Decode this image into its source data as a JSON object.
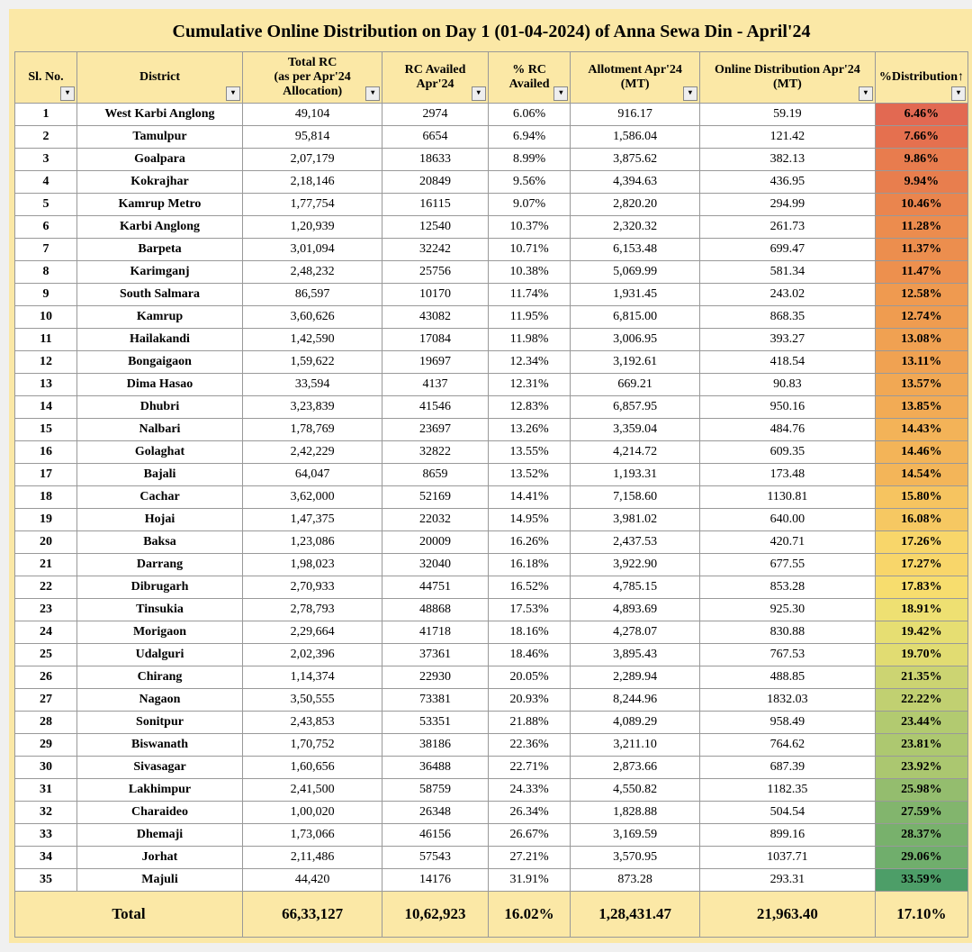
{
  "title": "Cumulative Online Distribution on Day 1 (01-04-2024) of Anna Sewa Din - April'24",
  "headers": [
    "Sl. No.",
    "District",
    "Total RC\n(as per Apr'24 Allocation)",
    "RC Availed Apr'24",
    "% RC Availed",
    "Allotment Apr'24 (MT)",
    "Online Distribution Apr'24 (MT)",
    "%Distribution↑"
  ],
  "rows": [
    {
      "sl": "1",
      "district": "West Karbi Anglong",
      "totalrc": "49,104",
      "rcavailed": "2974",
      "pctrc": "6.06%",
      "allot": "916.17",
      "dist": "59.19",
      "pctdist": "6.46%",
      "color": "#e26952"
    },
    {
      "sl": "2",
      "district": "Tamulpur",
      "totalrc": "95,814",
      "rcavailed": "6654",
      "pctrc": "6.94%",
      "allot": "1,586.04",
      "dist": "121.42",
      "pctdist": "7.66%",
      "color": "#e5704f"
    },
    {
      "sl": "3",
      "district": "Goalpara",
      "totalrc": "2,07,179",
      "rcavailed": "18633",
      "pctrc": "8.99%",
      "allot": "3,875.62",
      "dist": "382.13",
      "pctdist": "9.86%",
      "color": "#e87c4e"
    },
    {
      "sl": "4",
      "district": "Kokrajhar",
      "totalrc": "2,18,146",
      "rcavailed": "20849",
      "pctrc": "9.56%",
      "allot": "4,394.63",
      "dist": "436.95",
      "pctdist": "9.94%",
      "color": "#e87e4e"
    },
    {
      "sl": "5",
      "district": "Kamrup Metro",
      "totalrc": "1,77,754",
      "rcavailed": "16115",
      "pctrc": "9.07%",
      "allot": "2,820.20",
      "dist": "294.99",
      "pctdist": "10.46%",
      "color": "#ea854e"
    },
    {
      "sl": "6",
      "district": "Karbi Anglong",
      "totalrc": "1,20,939",
      "rcavailed": "12540",
      "pctrc": "10.37%",
      "allot": "2,320.32",
      "dist": "261.73",
      "pctdist": "11.28%",
      "color": "#ec8c4e"
    },
    {
      "sl": "7",
      "district": "Barpeta",
      "totalrc": "3,01,094",
      "rcavailed": "32242",
      "pctrc": "10.71%",
      "allot": "6,153.48",
      "dist": "699.47",
      "pctdist": "11.37%",
      "color": "#ec8e4e"
    },
    {
      "sl": "8",
      "district": "Karimganj",
      "totalrc": "2,48,232",
      "rcavailed": "25756",
      "pctrc": "10.38%",
      "allot": "5,069.99",
      "dist": "581.34",
      "pctdist": "11.47%",
      "color": "#ed904e"
    },
    {
      "sl": "9",
      "district": "South Salmara",
      "totalrc": "86,597",
      "rcavailed": "10170",
      "pctrc": "11.74%",
      "allot": "1,931.45",
      "dist": "243.02",
      "pctdist": "12.58%",
      "color": "#ef9a50"
    },
    {
      "sl": "10",
      "district": "Kamrup",
      "totalrc": "3,60,626",
      "rcavailed": "43082",
      "pctrc": "11.95%",
      "allot": "6,815.00",
      "dist": "868.35",
      "pctdist": "12.74%",
      "color": "#ef9c50"
    },
    {
      "sl": "11",
      "district": "Hailakandi",
      "totalrc": "1,42,590",
      "rcavailed": "17084",
      "pctrc": "11.98%",
      "allot": "3,006.95",
      "dist": "393.27",
      "pctdist": "13.08%",
      "color": "#f0a152"
    },
    {
      "sl": "12",
      "district": "Bongaigaon",
      "totalrc": "1,59,622",
      "rcavailed": "19697",
      "pctrc": "12.34%",
      "allot": "3,192.61",
      "dist": "418.54",
      "pctdist": "13.11%",
      "color": "#f0a252"
    },
    {
      "sl": "13",
      "district": "Dima Hasao",
      "totalrc": "33,594",
      "rcavailed": "4137",
      "pctrc": "12.31%",
      "allot": "669.21",
      "dist": "90.83",
      "pctdist": "13.57%",
      "color": "#f1a854"
    },
    {
      "sl": "14",
      "district": "Dhubri",
      "totalrc": "3,23,839",
      "rcavailed": "41546",
      "pctrc": "12.83%",
      "allot": "6,857.95",
      "dist": "950.16",
      "pctdist": "13.85%",
      "color": "#f2ab55"
    },
    {
      "sl": "15",
      "district": "Nalbari",
      "totalrc": "1,78,769",
      "rcavailed": "23697",
      "pctrc": "13.26%",
      "allot": "3,359.04",
      "dist": "484.76",
      "pctdist": "14.43%",
      "color": "#f3b358"
    },
    {
      "sl": "16",
      "district": "Golaghat",
      "totalrc": "2,42,229",
      "rcavailed": "32822",
      "pctrc": "13.55%",
      "allot": "4,214.72",
      "dist": "609.35",
      "pctdist": "14.46%",
      "color": "#f3b458"
    },
    {
      "sl": "17",
      "district": "Bajali",
      "totalrc": "64,047",
      "rcavailed": "8659",
      "pctrc": "13.52%",
      "allot": "1,193.31",
      "dist": "173.48",
      "pctdist": "14.54%",
      "color": "#f3b559"
    },
    {
      "sl": "18",
      "district": "Cachar",
      "totalrc": "3,62,000",
      "rcavailed": "52169",
      "pctrc": "14.41%",
      "allot": "7,158.60",
      "dist": "1130.81",
      "pctdist": "15.80%",
      "color": "#f6c460"
    },
    {
      "sl": "19",
      "district": "Hojai",
      "totalrc": "1,47,375",
      "rcavailed": "22032",
      "pctrc": "14.95%",
      "allot": "3,981.02",
      "dist": "640.00",
      "pctdist": "16.08%",
      "color": "#f6c862"
    },
    {
      "sl": "20",
      "district": "Baksa",
      "totalrc": "1,23,086",
      "rcavailed": "20009",
      "pctrc": "16.26%",
      "allot": "2,437.53",
      "dist": "420.71",
      "pctdist": "17.26%",
      "color": "#f8d66a"
    },
    {
      "sl": "21",
      "district": "Darrang",
      "totalrc": "1,98,023",
      "rcavailed": "32040",
      "pctrc": "16.18%",
      "allot": "3,922.90",
      "dist": "677.55",
      "pctdist": "17.27%",
      "color": "#f8d66a"
    },
    {
      "sl": "22",
      "district": "Dibrugarh",
      "totalrc": "2,70,933",
      "rcavailed": "44751",
      "pctrc": "16.52%",
      "allot": "4,785.15",
      "dist": "853.28",
      "pctdist": "17.83%",
      "color": "#f7dd6e"
    },
    {
      "sl": "23",
      "district": "Tinsukia",
      "totalrc": "2,78,793",
      "rcavailed": "48868",
      "pctrc": "17.53%",
      "allot": "4,893.69",
      "dist": "925.30",
      "pctdist": "18.91%",
      "color": "#eee072"
    },
    {
      "sl": "24",
      "district": "Morigaon",
      "totalrc": "2,29,664",
      "rcavailed": "41718",
      "pctrc": "18.16%",
      "allot": "4,278.07",
      "dist": "830.88",
      "pctdist": "19.42%",
      "color": "#e6de72"
    },
    {
      "sl": "25",
      "district": "Udalguri",
      "totalrc": "2,02,396",
      "rcavailed": "37361",
      "pctrc": "18.46%",
      "allot": "3,895.43",
      "dist": "767.53",
      "pctdist": "19.70%",
      "color": "#e1dc72"
    },
    {
      "sl": "26",
      "district": "Chirang",
      "totalrc": "1,14,374",
      "rcavailed": "22930",
      "pctrc": "20.05%",
      "allot": "2,289.94",
      "dist": "488.85",
      "pctdist": "21.35%",
      "color": "#ccd472"
    },
    {
      "sl": "27",
      "district": "Nagaon",
      "totalrc": "3,50,555",
      "rcavailed": "73381",
      "pctrc": "20.93%",
      "allot": "8,244.96",
      "dist": "1832.03",
      "pctdist": "22.22%",
      "color": "#c1d071"
    },
    {
      "sl": "28",
      "district": "Sonitpur",
      "totalrc": "2,43,853",
      "rcavailed": "53351",
      "pctrc": "21.88%",
      "allot": "4,089.29",
      "dist": "958.49",
      "pctdist": "23.44%",
      "color": "#b2ca70"
    },
    {
      "sl": "29",
      "district": "Biswanath",
      "totalrc": "1,70,752",
      "rcavailed": "38186",
      "pctrc": "22.36%",
      "allot": "3,211.10",
      "dist": "764.62",
      "pctdist": "23.81%",
      "color": "#adc870"
    },
    {
      "sl": "30",
      "district": "Sivasagar",
      "totalrc": "1,60,656",
      "rcavailed": "36488",
      "pctrc": "22.71%",
      "allot": "2,873.66",
      "dist": "687.39",
      "pctdist": "23.92%",
      "color": "#abc770"
    },
    {
      "sl": "31",
      "district": "Lakhimpur",
      "totalrc": "2,41,500",
      "rcavailed": "58759",
      "pctrc": "24.33%",
      "allot": "4,550.82",
      "dist": "1182.35",
      "pctdist": "25.98%",
      "color": "#94bd6e"
    },
    {
      "sl": "32",
      "district": "Charaideo",
      "totalrc": "1,00,020",
      "rcavailed": "26348",
      "pctrc": "26.34%",
      "allot": "1,828.88",
      "dist": "504.54",
      "pctdist": "27.59%",
      "color": "#82b56d"
    },
    {
      "sl": "33",
      "district": "Dhemaji",
      "totalrc": "1,73,066",
      "rcavailed": "46156",
      "pctrc": "26.67%",
      "allot": "3,169.59",
      "dist": "899.16",
      "pctdist": "28.37%",
      "color": "#78b16c"
    },
    {
      "sl": "34",
      "district": "Jorhat",
      "totalrc": "2,11,486",
      "rcavailed": "57543",
      "pctrc": "27.21%",
      "allot": "3,570.95",
      "dist": "1037.71",
      "pctdist": "29.06%",
      "color": "#70ae6c"
    },
    {
      "sl": "35",
      "district": "Majuli",
      "totalrc": "44,420",
      "rcavailed": "14176",
      "pctrc": "31.91%",
      "allot": "873.28",
      "dist": "293.31",
      "pctdist": "33.59%",
      "color": "#4d9e68"
    }
  ],
  "total": {
    "label": "Total",
    "totalrc": "66,33,127",
    "rcavailed": "10,62,923",
    "pctrc": "16.02%",
    "allot": "1,28,431.47",
    "dist": "21,963.40",
    "pctdist": "17.10%"
  }
}
